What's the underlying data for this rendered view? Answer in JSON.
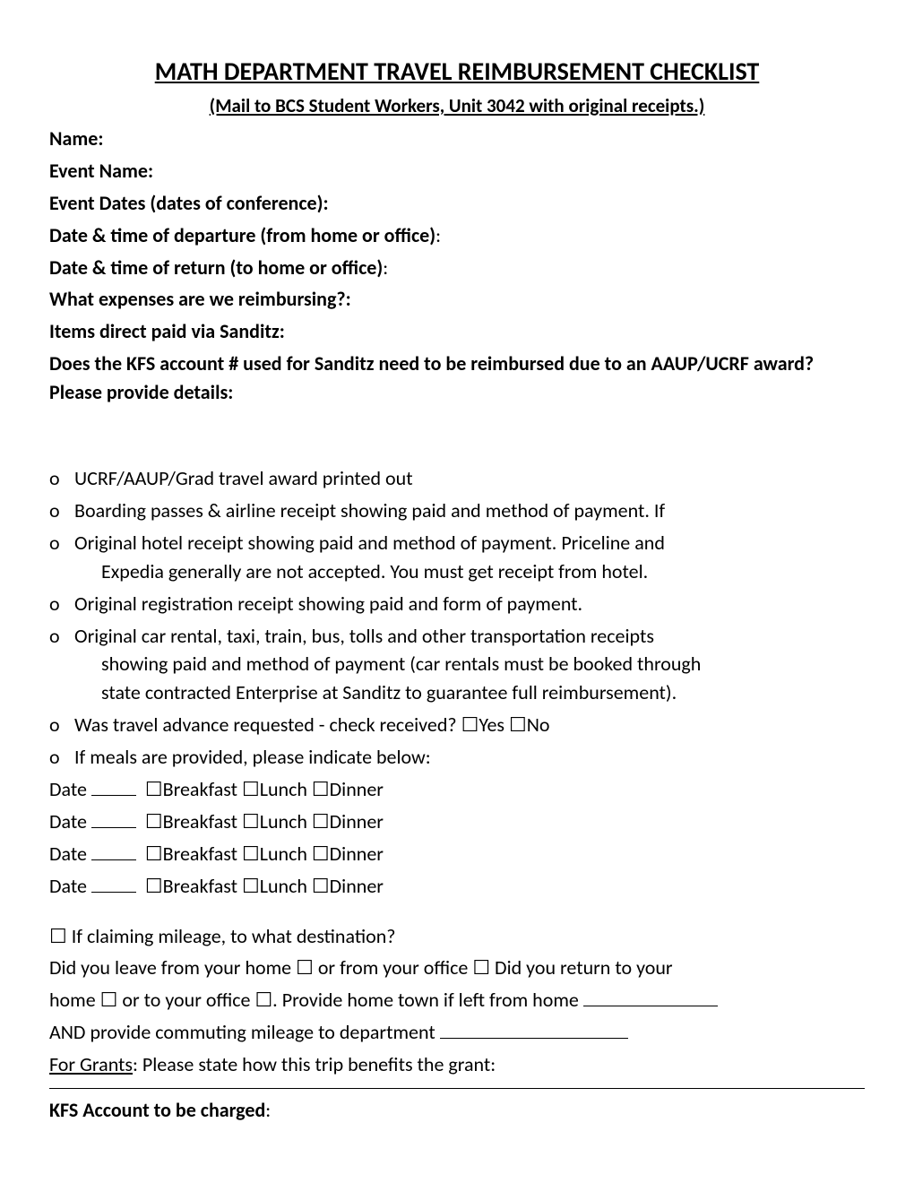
{
  "title": "MATH DEPARTMENT TRAVEL REIMBURSEMENT CHECKLIST",
  "subtitle": "(Mail to BCS Student Workers, Unit 3042 with original receipts.)",
  "fields": {
    "name": "Name:",
    "event_name": "Event Name:",
    "event_dates": "Event Dates (dates of conference):",
    "departure": "Date & time of departure (from home or office)",
    "return": "Date & time of return (to home or office)",
    "expenses": "What expenses are we reimbursing?:",
    "sanditz": "Items direct paid via Sanditz:",
    "kfs_q": "Does the KFS account # used for Sanditz need to be reimbursed due to an AAUP/UCRF award?   Please provide details:"
  },
  "colon": ":",
  "bullet": "o",
  "checkbox": "☐",
  "checklist": {
    "item1": "UCRF/AAUP/Grad travel award printed out",
    "item2": "Boarding passes & airline receipt showing paid and method of payment.  If",
    "item3a": "Original hotel receipt showing paid and method of payment.  Priceline and",
    "item3b": "Expedia generally are not accepted.  You must get receipt from hotel.",
    "item4": "Original registration receipt showing paid and form of payment.",
    "item5a": "Original car rental, taxi, train, bus, tolls and other transportation receipts",
    "item5b": "showing paid and method of payment (car rentals must be booked through",
    "item5c": "state contracted Enterprise at Sanditz to guarantee full reimbursement).",
    "item6_pre": "Was travel advance requested - check received?  ",
    "yes": "Yes ",
    "no": "No",
    "item7": "If meals are provided, please indicate below:"
  },
  "meal": {
    "date": "Date ",
    "breakfast": "Breakfast ",
    "lunch": "Lunch ",
    "dinner": "Dinner"
  },
  "mileage": {
    "q": " If claiming mileage, to what destination?",
    "line1_a": "Did you leave from your home ",
    "line1_b": " or from your office ",
    "line1_c": " Did you return to your",
    "line2_a": "home ",
    "line2_b": " or to your office ",
    "line2_c": ".  Provide home town if left from home ",
    "line3_a": "AND provide commuting mileage to department ",
    "grants_label": "For Grants",
    "grants_rest": ":  Please state how this trip benefits the grant:"
  },
  "kfs_charge": "KFS Account to be charged",
  "colors": {
    "text": "#000000",
    "background": "#ffffff"
  },
  "typography": {
    "title_fontsize": 28,
    "subtitle_fontsize": 21,
    "body_fontsize": 22,
    "font_family": "Calibri"
  }
}
